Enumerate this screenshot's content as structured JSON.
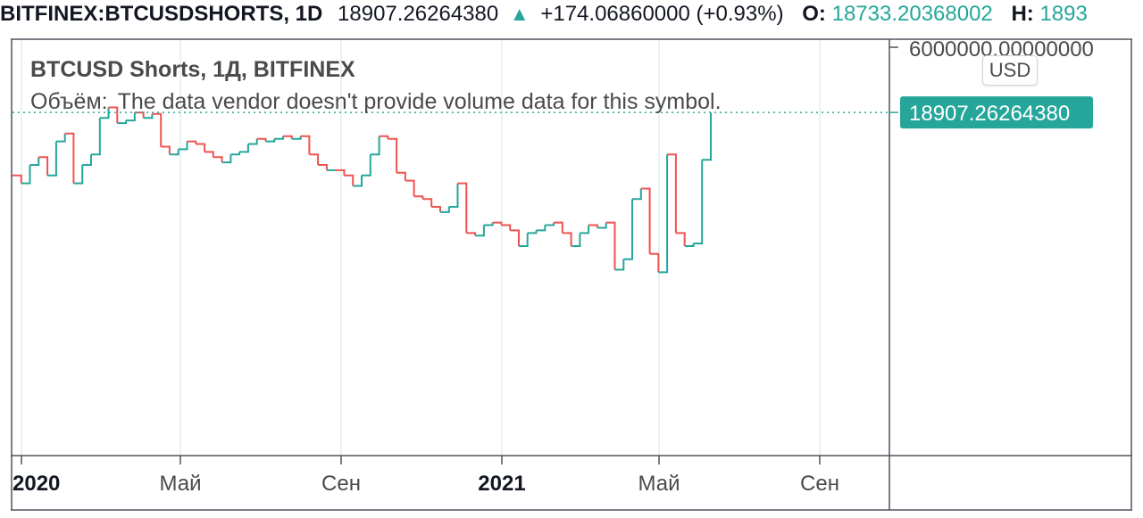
{
  "header": {
    "symbol": "BITFINEX:BTCUSDSHORTS, 1D",
    "price": "18907.26264380",
    "change_arrow_icon": "triangle-up-icon",
    "change": "+174.06860000 (+0.93%)",
    "open_label": "O:",
    "open_value": "18733.20368002",
    "high_label": "H:",
    "high_value": "1893"
  },
  "legend": {
    "title": "BTCUSD Shorts, 1Д, BITFINEX",
    "volume_label": "Объём:",
    "volume_message": "The data vendor doesn't provide volume data for this symbol."
  },
  "price_scale": {
    "currency": "USD",
    "top_label": "6000000.00000000",
    "last_price_label": "18907.26264380"
  },
  "colors": {
    "up": "#26a69a",
    "down": "#ef5350",
    "last_price_line": "#26a69a",
    "grid": "#e0f0ee"
  },
  "time_axis": {
    "ticks": [
      {
        "label": "2020",
        "bold": true
      },
      {
        "label": "Май",
        "bold": false
      },
      {
        "label": "Сен",
        "bold": false
      },
      {
        "label": "2021",
        "bold": true
      },
      {
        "label": "Май",
        "bold": false
      },
      {
        "label": "Сен",
        "bold": false
      }
    ]
  },
  "chart_data": {
    "type": "line",
    "title": "BTCUSD Shorts, 1Д, BITFINEX",
    "series": [
      {
        "values": [
          16500,
          16200,
          16900,
          17200,
          16500,
          17800,
          18100,
          16200,
          16900,
          17300,
          18700,
          19100,
          18500,
          18600,
          18900,
          18700,
          18850,
          17600,
          17300,
          17500,
          17800,
          17700,
          17400,
          17200,
          17000,
          17300,
          17400,
          17700,
          17900,
          17800,
          17900,
          18000,
          17900,
          18000,
          17300,
          16900,
          16700,
          16700,
          16500,
          16100,
          16500,
          17300,
          18000,
          17900,
          16600,
          16300,
          15700,
          15600,
          15300,
          15100,
          15300,
          16200,
          14300,
          14200,
          14600,
          14700,
          14600,
          14400,
          13800,
          14300,
          14400,
          14600,
          14700,
          14300,
          13800,
          14300,
          14600,
          14500,
          14700,
          12900,
          13300,
          15600,
          16000,
          13500,
          12800,
          17300,
          14300,
          13800,
          13900,
          17100,
          18900
        ]
      }
    ],
    "x_ticks": [
      "2020",
      "Май",
      "Сен",
      "2021",
      "Май",
      "Сен"
    ],
    "last_value": 18907.2626438,
    "y_axis_labels": [
      "6000000.00000000",
      "18907.26264380"
    ],
    "grid": true
  }
}
